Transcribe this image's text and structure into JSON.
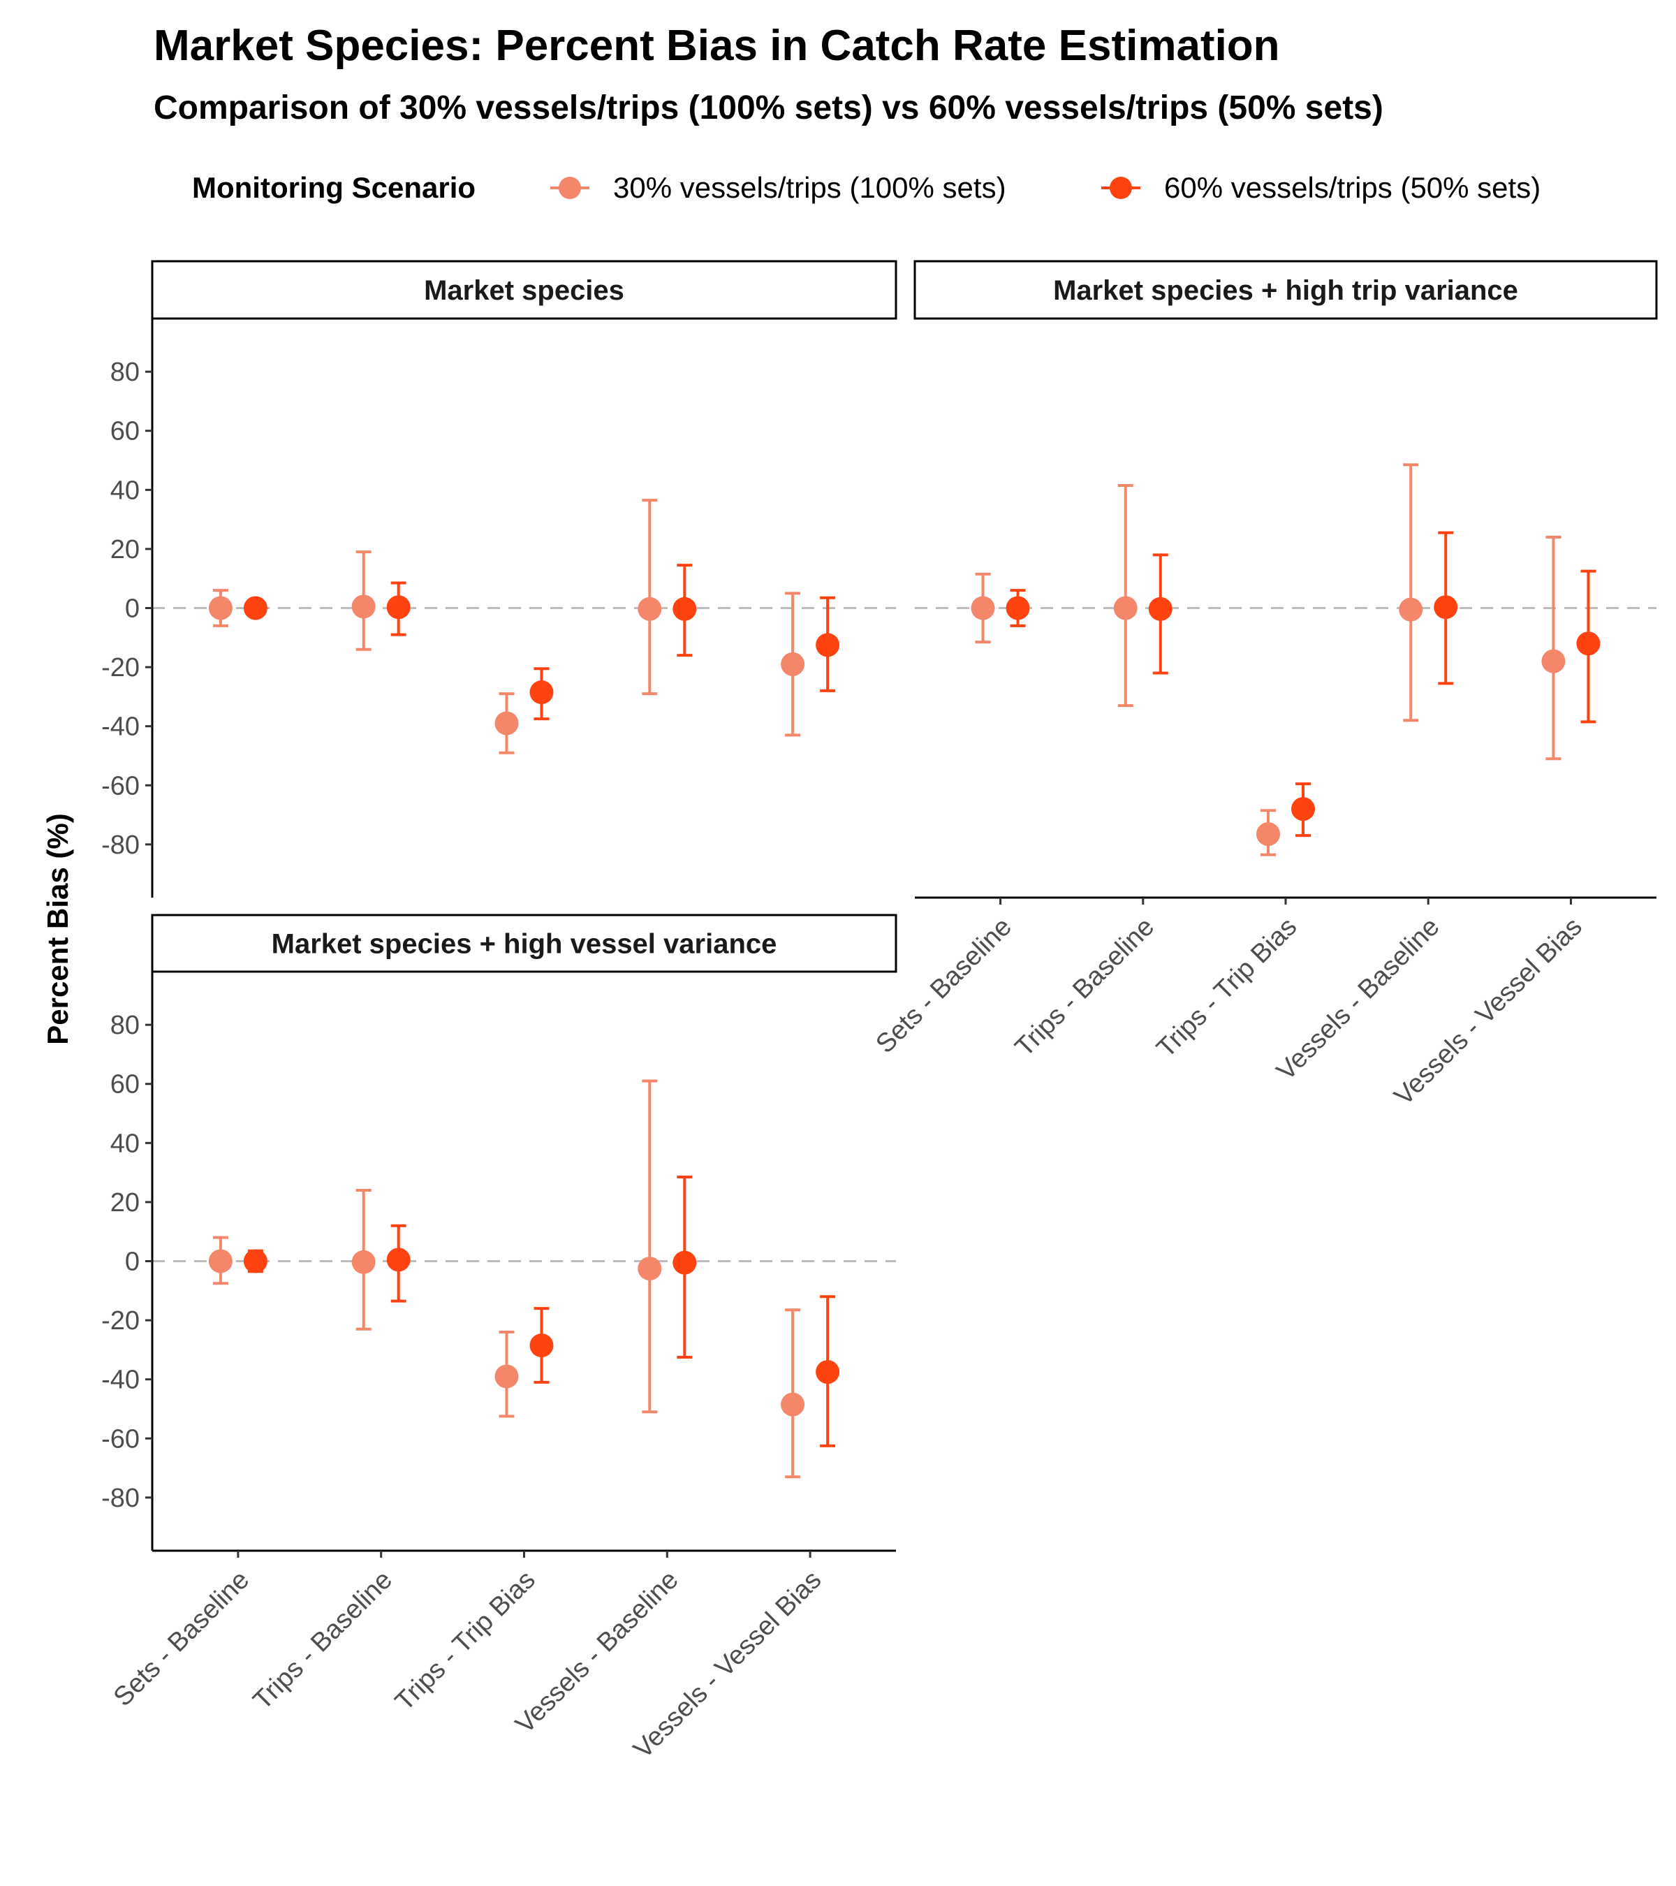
{
  "title": "Market Species: Percent Bias in Catch Rate Estimation",
  "subtitle": "Comparison of 30% vessels/trips (100% sets) vs 60% vessels/trips (50% sets)",
  "legend": {
    "title": "Monitoring Scenario",
    "items": [
      {
        "label": "30% vessels/trips (100% sets)",
        "color": "#f4876a"
      },
      {
        "label": "60% vessels/trips (50% sets)",
        "color": "#ff4310"
      }
    ]
  },
  "chart_data": {
    "type": "scatter",
    "variant": "dot-with-error-bars",
    "ylabel": "Percent Bias (%)",
    "xlabel": "",
    "ylim": [
      -98,
      98
    ],
    "yticks": [
      -80,
      -60,
      -40,
      -20,
      0,
      20,
      40,
      60,
      80
    ],
    "reference_line": 0,
    "categories": [
      "Sets - Baseline",
      "Trips - Baseline",
      "Trips - Trip Bias",
      "Vessels - Baseline",
      "Vessels - Vessel Bias"
    ],
    "series_names": [
      "30% vessels/trips (100% sets)",
      "60% vessels/trips (50% sets)"
    ],
    "series_colors": [
      "#f4876a",
      "#ff4310"
    ],
    "panels": [
      {
        "label": "Market species",
        "series": [
          {
            "name": "30% vessels/trips (100% sets)",
            "values": [
              0,
              0.5,
              -39,
              -0.3,
              -19
            ],
            "lower": [
              -6,
              -14,
              -49,
              -29,
              -43
            ],
            "upper": [
              6,
              19,
              -29,
              36.5,
              5
            ]
          },
          {
            "name": "60% vessels/trips (50% sets)",
            "values": [
              0,
              0.3,
              -28.5,
              -0.3,
              -12.5
            ],
            "lower": [
              0,
              -9,
              -37.5,
              -16,
              -28
            ],
            "upper": [
              0,
              8.5,
              -20.5,
              14.5,
              3.5
            ]
          }
        ]
      },
      {
        "label": "Market species + high trip variance",
        "series": [
          {
            "name": "30% vessels/trips (100% sets)",
            "values": [
              0,
              0,
              -76.5,
              -0.5,
              -18
            ],
            "lower": [
              -11.5,
              -33,
              -83.5,
              -38,
              -51
            ],
            "upper": [
              11.5,
              41.5,
              -68.5,
              48.5,
              24
            ]
          },
          {
            "name": "60% vessels/trips (50% sets)",
            "values": [
              0,
              -0.3,
              -68,
              0.3,
              -12
            ],
            "lower": [
              -6,
              -22,
              -77,
              -25.5,
              -38.5
            ],
            "upper": [
              6,
              18,
              -59.5,
              25.5,
              12.5
            ]
          }
        ]
      },
      {
        "label": "Market species + high vessel variance",
        "series": [
          {
            "name": "30% vessels/trips (100% sets)",
            "values": [
              0,
              -0.3,
              -39,
              -2.5,
              -48.5
            ],
            "lower": [
              -7.5,
              -23,
              -52.5,
              -51,
              -73
            ],
            "upper": [
              8,
              24,
              -24,
              61,
              -16.5
            ]
          },
          {
            "name": "60% vessels/trips (50% sets)",
            "values": [
              0,
              0.5,
              -28.5,
              -0.5,
              -37.5
            ],
            "lower": [
              -3.5,
              -13.5,
              -41,
              -32.5,
              -62.5
            ],
            "upper": [
              3.5,
              12,
              -16,
              28.5,
              -12
            ]
          }
        ]
      }
    ]
  }
}
